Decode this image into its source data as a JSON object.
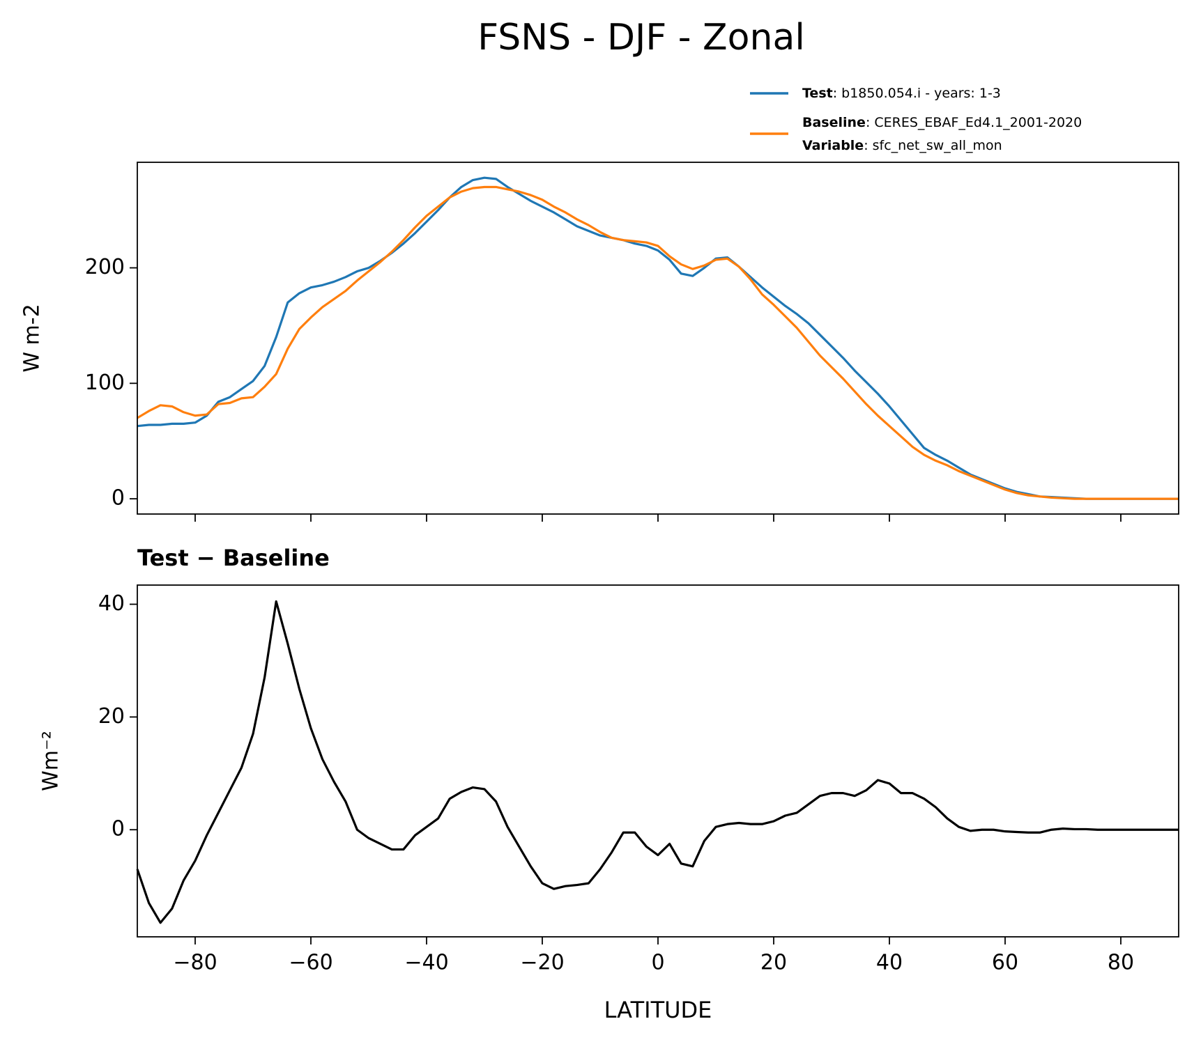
{
  "title": "FSNS - DJF - Zonal",
  "chart_data": [
    {
      "type": "line",
      "ylabel": "W m-2",
      "x": [
        -90,
        -88,
        -86,
        -84,
        -82,
        -80,
        -78,
        -76,
        -74,
        -72,
        -70,
        -68,
        -66,
        -64,
        -62,
        -60,
        -58,
        -56,
        -54,
        -52,
        -50,
        -48,
        -46,
        -44,
        -42,
        -40,
        -38,
        -36,
        -34,
        -32,
        -30,
        -28,
        -26,
        -24,
        -22,
        -20,
        -18,
        -16,
        -14,
        -12,
        -10,
        -8,
        -6,
        -4,
        -2,
        0,
        2,
        4,
        6,
        8,
        10,
        12,
        14,
        16,
        18,
        20,
        22,
        24,
        26,
        28,
        30,
        32,
        34,
        36,
        38,
        40,
        42,
        44,
        46,
        48,
        50,
        52,
        54,
        56,
        58,
        60,
        62,
        64,
        66,
        68,
        70,
        72,
        74,
        76,
        78,
        80,
        82,
        84,
        86,
        88,
        90
      ],
      "series": [
        {
          "name": "Test",
          "description": ": b1850.054.i - years: 1-3",
          "color": "#1f77b4",
          "values": [
            63,
            64,
            64,
            65,
            65,
            66,
            72,
            84,
            88,
            95,
            102,
            115,
            140,
            170,
            178,
            183,
            185,
            188,
            192,
            197,
            200,
            206,
            213,
            221,
            230,
            240,
            250,
            261,
            270,
            276,
            278,
            277,
            270,
            264,
            258,
            253,
            248,
            242,
            236,
            232,
            228,
            226,
            224,
            221,
            219,
            215,
            207,
            195,
            193,
            200,
            208,
            209,
            201,
            192,
            183,
            175,
            167,
            160,
            152,
            142,
            132,
            122,
            111,
            101,
            91,
            80,
            68,
            56,
            44,
            38,
            33,
            27,
            21,
            17,
            13,
            9,
            6,
            4,
            2,
            1.5,
            1,
            0.5,
            0,
            0,
            0,
            0,
            0,
            0,
            0,
            0,
            0
          ]
        },
        {
          "name": "Baseline",
          "description": ": CERES_EBAF_Ed4.1_2001-2020",
          "color": "#ff7f0e",
          "values": [
            70,
            76,
            81,
            80,
            75,
            72,
            73,
            82,
            83,
            87,
            88,
            97,
            108,
            130,
            147,
            157,
            166,
            173,
            180,
            189,
            197,
            205,
            214,
            224,
            235,
            245,
            253,
            261,
            266,
            269,
            270,
            270,
            268,
            266,
            263,
            259,
            253,
            248,
            242,
            237,
            231,
            226,
            224,
            223,
            222,
            219,
            210,
            203,
            199,
            202,
            207,
            208,
            201,
            190,
            177,
            168,
            158,
            148,
            136,
            124,
            114,
            104,
            93,
            82,
            72,
            63,
            54,
            45,
            38,
            33,
            29,
            24,
            20,
            16,
            12,
            8,
            5,
            3,
            2,
            1,
            0.5,
            0,
            0,
            0,
            0,
            0,
            0,
            0,
            0,
            0,
            0
          ]
        }
      ],
      "variable": {
        "label": "Variable",
        "text": ": sfc_net_sw_all_mon"
      },
      "xlim": [
        -90,
        90
      ],
      "xticks": [
        -80,
        -60,
        -40,
        -20,
        0,
        20,
        40,
        60,
        80
      ],
      "ylim": [
        -13.2,
        291.4
      ],
      "yticks": [
        0,
        100,
        200
      ]
    },
    {
      "type": "line",
      "title": "Test − Baseline",
      "xlabel": "LATITUDE",
      "ylabel": "Wm⁻²",
      "x": [
        -90,
        -88,
        -86,
        -84,
        -82,
        -80,
        -78,
        -76,
        -74,
        -72,
        -70,
        -68,
        -66,
        -64,
        -62,
        -60,
        -58,
        -56,
        -54,
        -52,
        -50,
        -48,
        -46,
        -44,
        -42,
        -40,
        -38,
        -36,
        -34,
        -32,
        -30,
        -28,
        -26,
        -24,
        -22,
        -20,
        -18,
        -16,
        -14,
        -12,
        -10,
        -8,
        -6,
        -4,
        -2,
        0,
        2,
        4,
        6,
        8,
        10,
        12,
        14,
        16,
        18,
        20,
        22,
        24,
        26,
        28,
        30,
        32,
        34,
        36,
        38,
        40,
        42,
        44,
        46,
        48,
        50,
        52,
        54,
        56,
        58,
        60,
        62,
        64,
        66,
        68,
        70,
        72,
        74,
        76,
        78,
        80,
        82,
        84,
        86,
        88,
        90
      ],
      "series": [
        {
          "color": "#000000",
          "values": [
            -7,
            -13,
            -16.5,
            -14,
            -9,
            -5.5,
            -1,
            3,
            7,
            11,
            17,
            27,
            40.5,
            33,
            25,
            18,
            12.5,
            8.5,
            5,
            0,
            -1.5,
            -2.5,
            -3.5,
            -3.5,
            -1,
            0.5,
            2,
            5.5,
            6.7,
            7.5,
            7.2,
            5,
            0.5,
            -3,
            -6.5,
            -9.5,
            -10.5,
            -10,
            -9.8,
            -9.5,
            -7,
            -4,
            -0.5,
            -0.5,
            -3,
            -4.5,
            -2.5,
            -6,
            -6.5,
            -2,
            0.5,
            1,
            1.2,
            1,
            1,
            1.5,
            2.5,
            3,
            4.5,
            6,
            6.5,
            6.5,
            6,
            7,
            8.8,
            8.2,
            6.5,
            6.5,
            5.5,
            4,
            2,
            0.5,
            -0.2,
            0,
            0,
            -0.3,
            -0.4,
            -0.5,
            -0.5,
            0,
            0.2,
            0.1,
            0.1,
            0,
            0,
            0,
            0,
            0,
            0,
            0,
            0
          ]
        }
      ],
      "xlim": [
        -90,
        90
      ],
      "xticks": [
        {
          "value": -80,
          "label": "−80"
        },
        {
          "value": -60,
          "label": "−60"
        },
        {
          "value": -40,
          "label": "−40"
        },
        {
          "value": -20,
          "label": "−20"
        },
        0,
        20,
        40,
        60,
        80
      ],
      "ylim": [
        -19,
        43.4
      ],
      "yticks": [
        0,
        20,
        40
      ]
    }
  ]
}
